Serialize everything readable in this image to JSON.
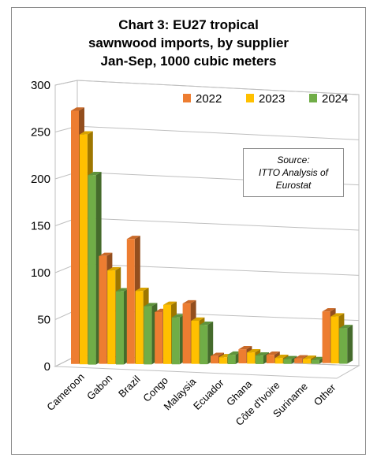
{
  "chart_data": {
    "type": "bar",
    "title_lines": [
      "Chart 3: EU27 tropical",
      "sawnwood imports, by supplier",
      "Jan-Sep, 1000 cubic meters"
    ],
    "categories": [
      "Cameroon",
      "Gabon",
      "Brazil",
      "Congo",
      "Malaysia",
      "Ecuador",
      "Ghana",
      "Côte d'Ivoire",
      "Suriname",
      "Other"
    ],
    "series": [
      {
        "name": "2022",
        "color": "#ED7D31",
        "values": [
          270,
          115,
          133,
          55,
          64,
          8,
          15,
          9,
          5,
          55
        ]
      },
      {
        "name": "2023",
        "color": "#FFC000",
        "values": [
          245,
          100,
          78,
          63,
          46,
          7,
          12,
          6,
          5,
          50
        ]
      },
      {
        "name": "2024",
        "color": "#70AD47",
        "values": [
          202,
          78,
          62,
          50,
          42,
          10,
          9,
          5,
          4,
          38
        ]
      }
    ],
    "y_ticks": [
      "300",
      "250",
      "200",
      "150",
      "100",
      "50",
      "0"
    ],
    "ylim": [
      0,
      300
    ],
    "grid": true,
    "legend_position": "top-right",
    "annotation_lines": [
      "Source:",
      "ITTO Analysis of",
      "Eurostat"
    ]
  }
}
